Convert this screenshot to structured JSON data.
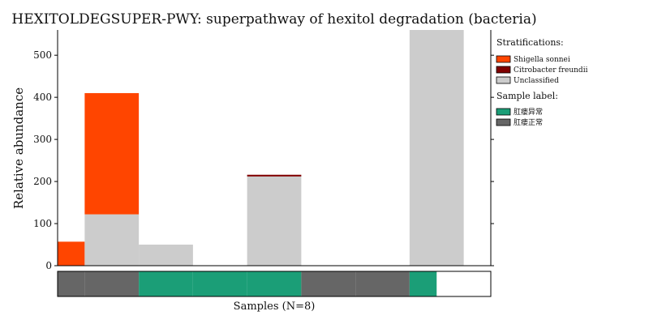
{
  "chart_data": {
    "type": "bar",
    "stacked": true,
    "title": "HEXITOLDEGSUPER-PWY: superpathway of hexitol degradation (bacteria)",
    "ylabel": "Relative abundance",
    "xlabel": "Samples (N=8)",
    "ylim": [
      0,
      560
    ],
    "yticks": [
      0,
      100,
      200,
      300,
      400,
      500
    ],
    "samples": [
      {
        "shigella": 57,
        "citrobacter": 0,
        "unclassified": 0,
        "label": "肛瘘正常"
      },
      {
        "shigella": 288,
        "citrobacter": 0,
        "unclassified": 122,
        "label": "肛瘘正常"
      },
      {
        "shigella": 0,
        "citrobacter": 0,
        "unclassified": 50,
        "label": "肛瘘异常"
      },
      {
        "shigella": 0,
        "citrobacter": 0,
        "unclassified": 0,
        "label": "肛瘘异常"
      },
      {
        "shigella": 0,
        "citrobacter": 4,
        "unclassified": 212,
        "label": "肛瘘异常"
      },
      {
        "shigella": 0,
        "citrobacter": 0,
        "unclassified": 0,
        "label": "肛瘘正常"
      },
      {
        "shigella": 0,
        "citrobacter": 0,
        "unclassified": 0,
        "label": "肛瘘正常"
      },
      {
        "shigella": 0,
        "citrobacter": 0,
        "unclassified": 560,
        "label": "肛瘘异常"
      }
    ],
    "series": [
      {
        "key": "unclassified",
        "name": "Unclassified",
        "color": "#cccccc"
      },
      {
        "key": "shigella",
        "name": "Shigella sonnei",
        "color": "#ff4500"
      },
      {
        "key": "citrobacter",
        "name": "Citrobacter freundii",
        "color": "#800000"
      }
    ],
    "legend": {
      "position": "right",
      "stratifications_title": "Stratifications:",
      "strat_entries": [
        {
          "name": "Shigella sonnei",
          "color": "#ff4500"
        },
        {
          "name": "Citrobacter freundii",
          "color": "#800000"
        },
        {
          "name": "Unclassified",
          "color": "#cccccc"
        }
      ],
      "sample_label_title": "Sample label:",
      "label_entries": [
        {
          "name": "肛瘘异常",
          "color": "#1b9e77"
        },
        {
          "name": "肛瘘正常",
          "color": "#666666"
        }
      ]
    }
  }
}
